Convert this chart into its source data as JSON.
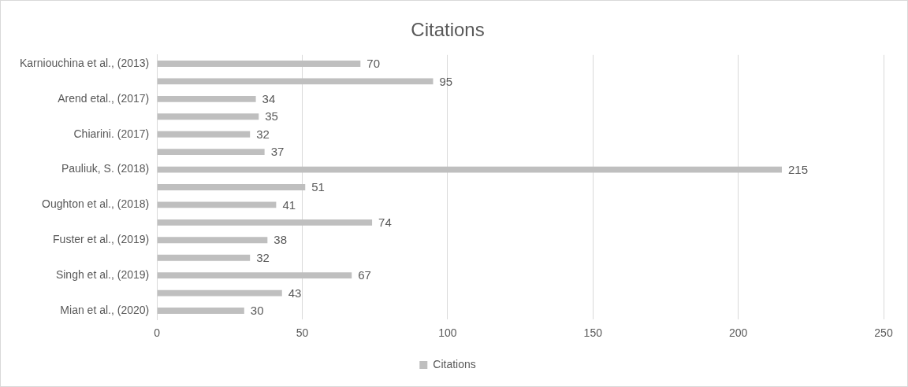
{
  "chart_data": {
    "type": "bar",
    "orientation": "horizontal",
    "title": "Citations",
    "categories": [
      "Karniouchina et al., (2013)",
      null,
      "Arend etal., (2017)",
      null,
      "Chiarini. (2017)",
      null,
      "Pauliuk, S. (2018)",
      null,
      "Oughton et al., (2018)",
      null,
      "Fuster et al., (2019)",
      null,
      "Singh et al., (2019)",
      null,
      "Mian et al., (2020)"
    ],
    "series": [
      {
        "name": "Citations",
        "color": "#bfbfbf",
        "values": [
          70,
          95,
          34,
          35,
          32,
          37,
          215,
          51,
          41,
          74,
          38,
          32,
          67,
          43,
          30
        ]
      }
    ],
    "xlim": [
      0,
      250
    ],
    "xticks": [
      0,
      50,
      100,
      150,
      200,
      250
    ],
    "grid": "x",
    "legend": "bottom",
    "data_labels": true
  }
}
